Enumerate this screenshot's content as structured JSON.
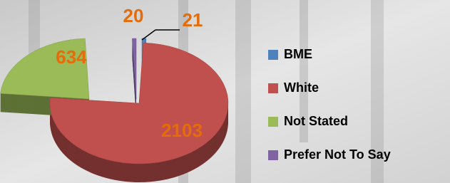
{
  "chart_data": {
    "type": "pie",
    "style": "3d",
    "categories": [
      "BME",
      "White",
      "Not Stated",
      "Prefer Not To Say"
    ],
    "values": [
      21,
      2103,
      634,
      20
    ],
    "colors": [
      "#4f81bd",
      "#c0504d",
      "#9bbb59",
      "#8064a2"
    ],
    "label_color": "#e46c0a",
    "legend": "right"
  }
}
